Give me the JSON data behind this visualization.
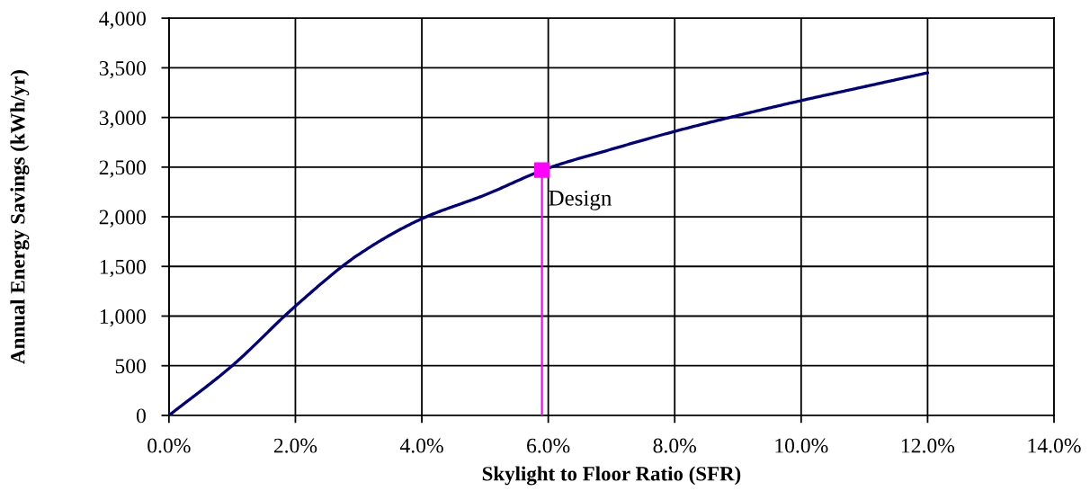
{
  "chart_data": {
    "type": "line",
    "xlabel": "Skylight to Floor Ratio (SFR)",
    "ylabel": "Annual Energy Savings (kWh/yr)",
    "x": [
      0,
      1,
      2,
      3,
      4,
      5,
      6,
      7,
      8,
      9,
      10,
      11,
      12
    ],
    "series": [
      {
        "color": "#000080",
        "marker": "none",
        "line_style": "solid",
        "values": [
          0,
          500,
          1100,
          1620,
          1980,
          2220,
          2490,
          2680,
          2860,
          3020,
          3170,
          3310,
          3450
        ]
      },
      {
        "type": "lollipop",
        "color": "#ff00ff",
        "marker": "square",
        "x": [
          5.9
        ],
        "values": [
          2470
        ]
      }
    ],
    "annotations": [
      {
        "text": "Design",
        "x": 5.9,
        "y": 2470
      }
    ],
    "xlim": [
      0,
      14
    ],
    "ylim": [
      0,
      4000
    ],
    "xticks": [
      {
        "value": 0,
        "label": "0.0%"
      },
      {
        "value": 2,
        "label": "2.0%"
      },
      {
        "value": 4,
        "label": "4.0%"
      },
      {
        "value": 6,
        "label": "6.0%"
      },
      {
        "value": 8,
        "label": "8.0%"
      },
      {
        "value": 10,
        "label": "10.0%"
      },
      {
        "value": 12,
        "label": "12.0%"
      },
      {
        "value": 14,
        "label": "14.0%"
      }
    ],
    "yticks": [
      0,
      500,
      {
        "value": 1000,
        "label": "1,000"
      },
      {
        "value": 1500,
        "label": "1,500"
      },
      {
        "value": 2000,
        "label": "2,000"
      },
      {
        "value": 2500,
        "label": "2,500"
      },
      {
        "value": 3000,
        "label": "3,000"
      },
      {
        "value": 3500,
        "label": "3,500"
      },
      {
        "value": 4000,
        "label": "4,000"
      }
    ],
    "grid": true
  }
}
